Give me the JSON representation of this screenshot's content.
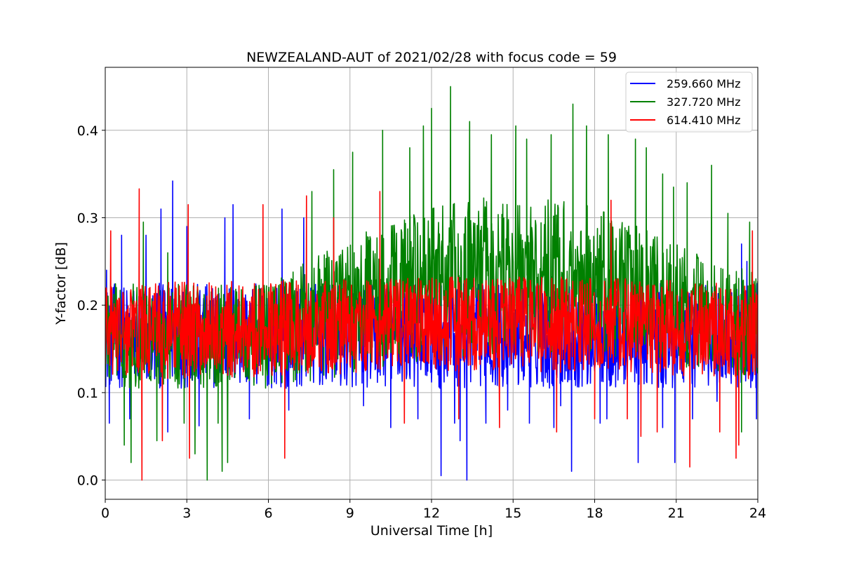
{
  "chart_data": {
    "type": "line",
    "title": "NEWZEALAND-AUT of 2021/02/28 with focus code = 59",
    "xlabel": "Universal Time [h]",
    "ylabel": "Y-factor [dB]",
    "xlim": [
      0,
      24
    ],
    "ylim": [
      -0.022,
      0.472
    ],
    "xticks": [
      0,
      3,
      6,
      9,
      12,
      15,
      18,
      21,
      24
    ],
    "yticks": [
      0.0,
      0.1,
      0.2,
      0.3,
      0.4
    ],
    "ytick_labels": [
      "0.0",
      "0.1",
      "0.2",
      "0.3",
      "0.4"
    ],
    "grid": true,
    "legend_position": "top-right",
    "series": [
      {
        "name": "259.660 MHz",
        "color": "#0000ff",
        "baseline": [
          [
            0,
            0.165
          ],
          [
            24,
            0.165
          ]
        ],
        "amplitude": [
          [
            0,
            0.06
          ],
          [
            24,
            0.06
          ]
        ],
        "peaks": [
          [
            0.05,
            0.24
          ],
          [
            0.15,
            0.065
          ],
          [
            0.6,
            0.28
          ],
          [
            0.9,
            0.07
          ],
          [
            1.5,
            0.28
          ],
          [
            2.05,
            0.31
          ],
          [
            2.3,
            0.055
          ],
          [
            2.48,
            0.342
          ],
          [
            3.0,
            0.29
          ],
          [
            3.45,
            0.062
          ],
          [
            4.4,
            0.3
          ],
          [
            4.7,
            0.315
          ],
          [
            5.3,
            0.07
          ],
          [
            6.5,
            0.31
          ],
          [
            6.75,
            0.08
          ],
          [
            7.3,
            0.3
          ],
          [
            9.5,
            0.085
          ],
          [
            10.5,
            0.06
          ],
          [
            11.5,
            0.07
          ],
          [
            12.35,
            0.005
          ],
          [
            12.85,
            0.065
          ],
          [
            13.05,
            0.045
          ],
          [
            13.3,
            0.0
          ],
          [
            14.0,
            0.065
          ],
          [
            14.8,
            0.08
          ],
          [
            15.6,
            0.065
          ],
          [
            16.5,
            0.06
          ],
          [
            16.75,
            0.085
          ],
          [
            17.15,
            0.01
          ],
          [
            18.2,
            0.065
          ],
          [
            18.45,
            0.07
          ],
          [
            19.6,
            0.02
          ],
          [
            20.5,
            0.06
          ],
          [
            20.95,
            0.02
          ],
          [
            21.6,
            0.07
          ],
          [
            22.5,
            0.09
          ],
          [
            23.4,
            0.27
          ],
          [
            23.6,
            0.25
          ],
          [
            23.95,
            0.07
          ]
        ]
      },
      {
        "name": "327.720 MHz",
        "color": "#008000",
        "baseline": [
          [
            0,
            0.165
          ],
          [
            6,
            0.165
          ],
          [
            9,
            0.2
          ],
          [
            12.5,
            0.23
          ],
          [
            15,
            0.235
          ],
          [
            18,
            0.23
          ],
          [
            21,
            0.2
          ],
          [
            24,
            0.175
          ]
        ],
        "amplitude": [
          [
            0,
            0.06
          ],
          [
            6,
            0.06
          ],
          [
            9,
            0.08
          ],
          [
            12.5,
            0.09
          ],
          [
            15,
            0.09
          ],
          [
            18,
            0.085
          ],
          [
            21,
            0.07
          ],
          [
            24,
            0.06
          ]
        ],
        "peaks": [
          [
            0.7,
            0.04
          ],
          [
            0.95,
            0.02
          ],
          [
            1.4,
            0.295
          ],
          [
            1.9,
            0.045
          ],
          [
            2.3,
            0.26
          ],
          [
            2.9,
            0.065
          ],
          [
            3.3,
            0.03
          ],
          [
            3.75,
            0.0
          ],
          [
            4.15,
            0.065
          ],
          [
            4.3,
            0.01
          ],
          [
            4.5,
            0.02
          ],
          [
            7.6,
            0.33
          ],
          [
            8.4,
            0.355
          ],
          [
            9.1,
            0.375
          ],
          [
            10.2,
            0.4
          ],
          [
            11.2,
            0.38
          ],
          [
            11.7,
            0.405
          ],
          [
            12.0,
            0.425
          ],
          [
            12.7,
            0.45
          ],
          [
            13.4,
            0.41
          ],
          [
            14.2,
            0.395
          ],
          [
            15.1,
            0.405
          ],
          [
            15.5,
            0.39
          ],
          [
            16.4,
            0.395
          ],
          [
            17.2,
            0.43
          ],
          [
            17.7,
            0.405
          ],
          [
            18.5,
            0.395
          ],
          [
            19.5,
            0.39
          ],
          [
            19.9,
            0.38
          ],
          [
            20.5,
            0.35
          ],
          [
            20.9,
            0.335
          ],
          [
            21.4,
            0.34
          ],
          [
            22.3,
            0.36
          ],
          [
            22.9,
            0.305
          ],
          [
            23.4,
            0.055
          ],
          [
            23.7,
            0.295
          ]
        ]
      },
      {
        "name": "614.410 MHz",
        "color": "#ff0000",
        "baseline": [
          [
            0,
            0.17
          ],
          [
            9,
            0.175
          ],
          [
            15,
            0.18
          ],
          [
            24,
            0.17
          ]
        ],
        "amplitude": [
          [
            0,
            0.055
          ],
          [
            24,
            0.055
          ]
        ],
        "peaks": [
          [
            0.2,
            0.285
          ],
          [
            1.25,
            0.333
          ],
          [
            1.35,
            0.0
          ],
          [
            2.1,
            0.045
          ],
          [
            3.05,
            0.315
          ],
          [
            3.1,
            0.025
          ],
          [
            5.8,
            0.315
          ],
          [
            6.6,
            0.025
          ],
          [
            7.4,
            0.325
          ],
          [
            8.4,
            0.3
          ],
          [
            10.1,
            0.33
          ],
          [
            11.0,
            0.065
          ],
          [
            13.0,
            0.07
          ],
          [
            14.5,
            0.06
          ],
          [
            16.6,
            0.055
          ],
          [
            18.0,
            0.07
          ],
          [
            18.6,
            0.32
          ],
          [
            19.2,
            0.07
          ],
          [
            19.7,
            0.05
          ],
          [
            20.3,
            0.055
          ],
          [
            21.5,
            0.015
          ],
          [
            22.6,
            0.055
          ],
          [
            23.2,
            0.025
          ],
          [
            23.3,
            0.04
          ],
          [
            23.8,
            0.285
          ]
        ]
      }
    ]
  }
}
